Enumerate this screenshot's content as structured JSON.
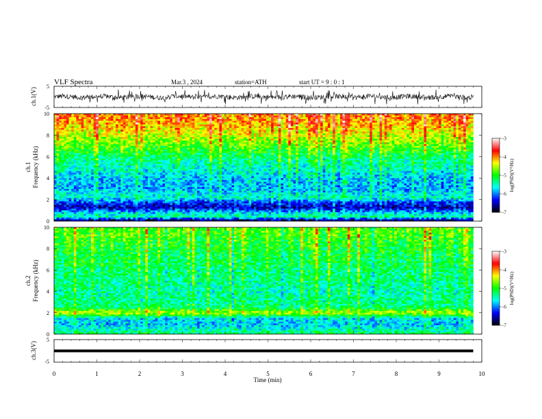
{
  "header": {
    "title": "VLF Spectra",
    "date": "Mar.3 , 2024",
    "station": "station=ATH",
    "start_ut": "start UT = 9 : 0 : 1"
  },
  "chart_data": [
    {
      "type": "line",
      "panel": "ch1",
      "ylabel": "ch.1(V)",
      "xlim": [
        0,
        10
      ],
      "ylim": [
        -5,
        5
      ],
      "y_ticks": [
        "5",
        "-5"
      ],
      "y_values": [
        5,
        -5
      ],
      "description_values": {
        "baseline_v": 0,
        "typical_range_v": [
          -1.5,
          1.5
        ],
        "spike_max_v": 3.5
      },
      "line_color": "#000000"
    },
    {
      "type": "heatmap",
      "panel": "ch1-spectrogram",
      "ylabel_line1": "ch.1",
      "ylabel_line2": "Frequency (kHz)",
      "xlim": [
        0,
        10
      ],
      "ylim": [
        0,
        10
      ],
      "y_ticks": [
        "0",
        "2",
        "4",
        "6",
        "8",
        "10"
      ],
      "y_values": [
        0,
        2,
        4,
        6,
        8,
        10
      ],
      "data_end_min": 9.8,
      "colorbar": {
        "label": "log(PSD)(V²/Hz)",
        "ticks": [
          "-3",
          "-4",
          "-5",
          "-6",
          "-7"
        ],
        "tick_values": [
          -3,
          -4,
          -5,
          -6,
          -7
        ],
        "range": [
          -7,
          -3
        ]
      },
      "band_profile_log_psd": [
        {
          "f_khz": 0.1,
          "v": -6.6
        },
        {
          "f_khz": 0.4,
          "v": -5.2
        },
        {
          "f_khz": 0.8,
          "v": -5.6
        },
        {
          "f_khz": 1.3,
          "v": -6.5
        },
        {
          "f_khz": 1.8,
          "v": -6.0
        },
        {
          "f_khz": 2.2,
          "v": -5.3
        },
        {
          "f_khz": 3.0,
          "v": -5.7
        },
        {
          "f_khz": 4.0,
          "v": -5.6
        },
        {
          "f_khz": 5.0,
          "v": -5.3
        },
        {
          "f_khz": 6.0,
          "v": -5.0
        },
        {
          "f_khz": 7.0,
          "v": -4.5
        },
        {
          "f_khz": 8.0,
          "v": -4.1
        },
        {
          "f_khz": 9.0,
          "v": -3.7
        },
        {
          "f_khz": 10.0,
          "v": -3.5
        }
      ]
    },
    {
      "type": "heatmap",
      "panel": "ch2-spectrogram",
      "ylabel_line1": "ch.2",
      "ylabel_line2": "Frequency (kHz)",
      "xlim": [
        0,
        10
      ],
      "ylim": [
        0,
        10
      ],
      "y_ticks": [
        "0",
        "2",
        "4",
        "6",
        "8",
        "10"
      ],
      "y_values": [
        0,
        2,
        4,
        6,
        8,
        10
      ],
      "data_end_min": 9.8,
      "colorbar": {
        "label": "log(PSD)(V²/Hz)",
        "ticks": [
          "-3",
          "-4",
          "-5",
          "-6",
          "-7"
        ],
        "tick_values": [
          -3,
          -4,
          -5,
          -6,
          -7
        ],
        "range": [
          -7,
          -3
        ]
      },
      "band_profile_log_psd": [
        {
          "f_khz": 0.1,
          "v": -5.0
        },
        {
          "f_khz": 0.5,
          "v": -5.4
        },
        {
          "f_khz": 1.0,
          "v": -5.6
        },
        {
          "f_khz": 1.5,
          "v": -5.5
        },
        {
          "f_khz": 2.0,
          "v": -4.1
        },
        {
          "f_khz": 2.5,
          "v": -5.0
        },
        {
          "f_khz": 3.0,
          "v": -5.1
        },
        {
          "f_khz": 4.0,
          "v": -5.2
        },
        {
          "f_khz": 5.0,
          "v": -5.1
        },
        {
          "f_khz": 6.0,
          "v": -5.0
        },
        {
          "f_khz": 7.0,
          "v": -4.9
        },
        {
          "f_khz": 8.0,
          "v": -4.8
        },
        {
          "f_khz": 9.0,
          "v": -4.6
        },
        {
          "f_khz": 10.0,
          "v": -4.5
        }
      ]
    },
    {
      "type": "line",
      "panel": "ch3",
      "ylabel": "ch.3(V)",
      "xlim": [
        0,
        10
      ],
      "ylim": [
        -5,
        5
      ],
      "y_ticks": [
        "5",
        "-5"
      ],
      "y_values": [
        5,
        -5
      ],
      "constant_v": 0,
      "line_color": "#000000"
    }
  ],
  "xaxis": {
    "label": "Time (min)",
    "ticks": [
      "0",
      "1",
      "2",
      "3",
      "4",
      "5",
      "6",
      "7",
      "8",
      "9",
      "10"
    ],
    "values": [
      0,
      1,
      2,
      3,
      4,
      5,
      6,
      7,
      8,
      9,
      10
    ]
  },
  "colors": {
    "colormap": [
      "#000000",
      "#0000ff",
      "#00ffff",
      "#00ff00",
      "#ffff00",
      "#ff0000",
      "#ffffff"
    ]
  }
}
